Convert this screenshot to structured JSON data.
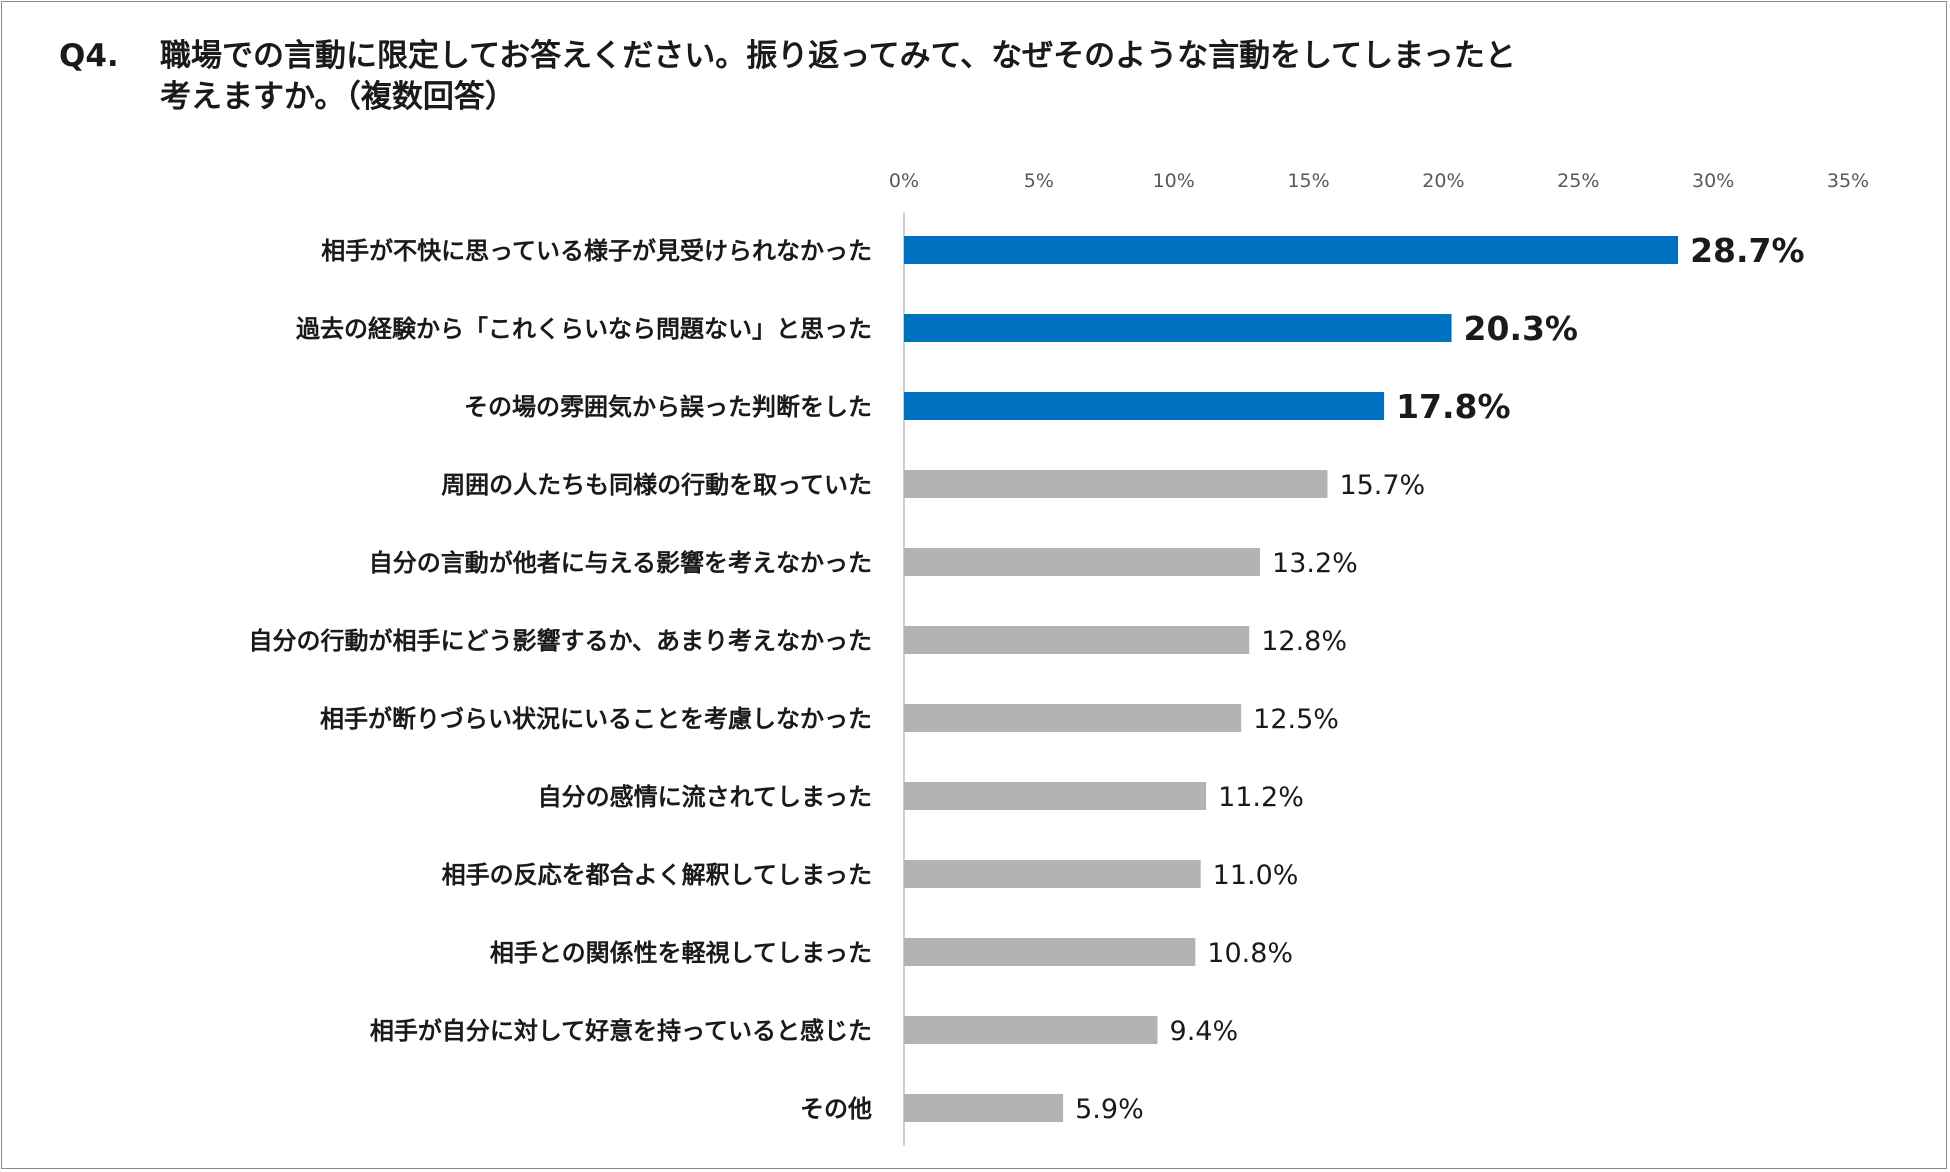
{
  "question": {
    "number": "Q4.",
    "text_line1": "職場での言動に限定してお答えください。振り返ってみて、なぜそのような言動をしてしまったと",
    "text_line2": "考えますか。（複数回答）"
  },
  "chart_data": {
    "type": "bar",
    "orientation": "horizontal",
    "title": "",
    "xlabel": "",
    "ylabel": "",
    "xlim": [
      0,
      35
    ],
    "tick_labels": [
      "0%",
      "5%",
      "10%",
      "15%",
      "20%",
      "25%",
      "30%",
      "35%"
    ],
    "grid": false,
    "categories": [
      "相手が不快に思っている様子が見受けられなかった",
      "過去の経験から「これくらいなら問題ない」と思った",
      "その場の雰囲気から誤った判断をした",
      "周囲の人たちも同様の行動を取っていた",
      "自分の言動が他者に与える影響を考えなかった",
      "自分の行動が相手にどう影響するか、あまり考えなかった",
      "相手が断りづらい状況にいることを考慮しなかった",
      "自分の感情に流されてしまった",
      "相手の反応を都合よく解釈してしまった",
      "相手との関係性を軽視してしまった",
      "相手が自分に対して好意を持っていると感じた",
      "その他"
    ],
    "values": [
      28.7,
      20.3,
      17.8,
      15.7,
      13.2,
      12.8,
      12.5,
      11.2,
      11.0,
      10.8,
      9.4,
      5.9
    ],
    "value_labels": [
      "28.7%",
      "20.3%",
      "17.8%",
      "15.7%",
      "13.2%",
      "12.8%",
      "12.5%",
      "11.2%",
      "11.0%",
      "10.8%",
      "9.4%",
      "5.9%"
    ],
    "highlighted_top_n": 3,
    "colors": {
      "highlight": "#0070C0",
      "default": "#B3B3B3",
      "axis": "#D0D0D0"
    }
  }
}
